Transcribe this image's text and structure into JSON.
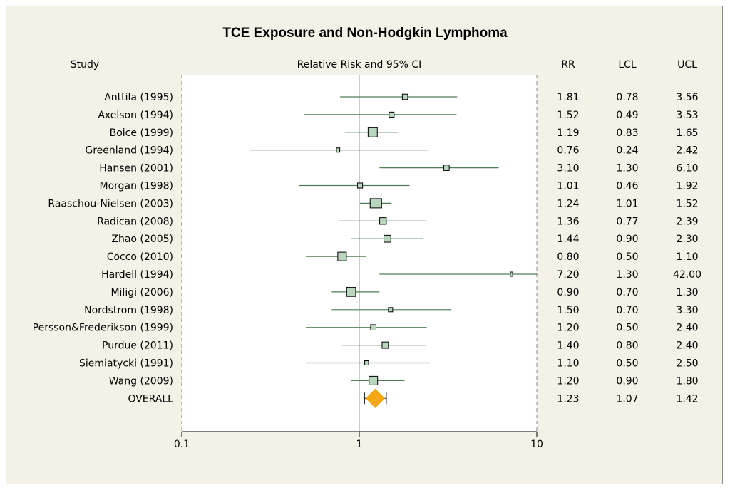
{
  "chart_data": {
    "type": "forest",
    "title": "TCE Exposure and Non-Hodgkin Lymphoma",
    "columns": {
      "study": "Study",
      "plot": "Relative Risk and 95% CI",
      "rr": "RR",
      "lcl": "LCL",
      "ucl": "UCL"
    },
    "x_axis": {
      "scale": "log",
      "min": 0.1,
      "max": 10,
      "ticks": [
        "0.1",
        "1",
        "10"
      ],
      "reference": 1
    },
    "colors": {
      "box": "#b9d6bd",
      "ci_line": "#4f7f53",
      "diamond": "#f5a614",
      "reference": "#999999"
    },
    "rows": [
      {
        "study": "Anttila (1995)",
        "rr": "1.81",
        "lcl": "0.78",
        "ucl": "3.56",
        "weight": 0.8
      },
      {
        "study": "Axelson (1994)",
        "rr": "1.52",
        "lcl": "0.49",
        "ucl": "3.53",
        "weight": 0.7
      },
      {
        "study": "Boice (1999)",
        "rr": "1.19",
        "lcl": "0.83",
        "ucl": "1.65",
        "weight": 2.3
      },
      {
        "study": "Greenland (1994)",
        "rr": "0.76",
        "lcl": "0.24",
        "ucl": "2.42",
        "weight": 0.3
      },
      {
        "study": "Hansen (2001)",
        "rr": "3.10",
        "lcl": "1.30",
        "ucl": "6.10",
        "weight": 0.8
      },
      {
        "study": "Morgan (1998)",
        "rr": "1.01",
        "lcl": "0.46",
        "ucl": "1.92",
        "weight": 0.7
      },
      {
        "study": "Raaschou-Nielsen (2003)",
        "rr": "1.24",
        "lcl": "1.01",
        "ucl": "1.52",
        "weight": 3.6
      },
      {
        "study": "Radican (2008)",
        "rr": "1.36",
        "lcl": "0.77",
        "ucl": "2.39",
        "weight": 1.2
      },
      {
        "study": "Zhao (2005)",
        "rr": "1.44",
        "lcl": "0.90",
        "ucl": "2.30",
        "weight": 1.3
      },
      {
        "study": "Cocco (2010)",
        "rr": "0.80",
        "lcl": "0.50",
        "ucl": "1.10",
        "weight": 2.0
      },
      {
        "study": "Hardell (1994)",
        "rr": "7.20",
        "lcl": "1.30",
        "ucl": "42.00",
        "weight": 0.15
      },
      {
        "study": "Miligi (2006)",
        "rr": "0.90",
        "lcl": "0.70",
        "ucl": "1.30",
        "weight": 2.2
      },
      {
        "study": "Nordstrom (1998)",
        "rr": "1.50",
        "lcl": "0.70",
        "ucl": "3.30",
        "weight": 0.5
      },
      {
        "study": "Persson&Frederikson (1999)",
        "rr": "1.20",
        "lcl": "0.50",
        "ucl": "2.40",
        "weight": 0.8
      },
      {
        "study": "Purdue (2011)",
        "rr": "1.40",
        "lcl": "0.80",
        "ucl": "2.40",
        "weight": 1.1
      },
      {
        "study": "Siemiatycki (1991)",
        "rr": "1.10",
        "lcl": "0.50",
        "ucl": "2.50",
        "weight": 0.4
      },
      {
        "study": "Wang (2009)",
        "rr": "1.20",
        "lcl": "0.90",
        "ucl": "1.80",
        "weight": 2.0
      }
    ],
    "overall": {
      "study": "OVERALL",
      "rr": "1.23",
      "lcl": "1.07",
      "ucl": "1.42"
    }
  }
}
